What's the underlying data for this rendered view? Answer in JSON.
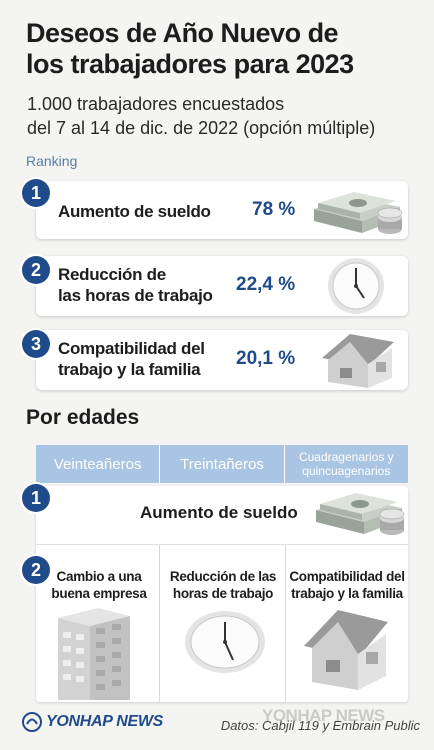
{
  "title_line1": "Deseos de Año Nuevo de",
  "title_line2": "los trabajadores para 2023",
  "subtitle_line1": "1.000 trabajadores encuestados",
  "subtitle_line2": "del 7 al 14 de dic. de 2022 (opción múltiple)",
  "ranking_label": "Ranking",
  "ranking": [
    {
      "rank": "1",
      "label_line1": "Aumento de sueldo",
      "label_line2": "",
      "pct": "78 %",
      "icon": "money-icon"
    },
    {
      "rank": "2",
      "label_line1": "Reducción de",
      "label_line2": "las horas de trabajo",
      "pct": "22,4 %",
      "icon": "clock-icon"
    },
    {
      "rank": "3",
      "label_line1": "Compatibilidad del",
      "label_line2": "trabajo y la familia",
      "pct": "20,1 %",
      "icon": "house-icon"
    }
  ],
  "by_age": {
    "title": "Por edades",
    "groups": [
      "Veinteañeros",
      "Treintañeros",
      "Cuadragenarios y",
      "quincuagenarios"
    ],
    "rank1_label": "Aumento de sueldo",
    "rank1_badge": "1",
    "rank2_badge": "2",
    "rank2": [
      {
        "line1": "Cambio a una",
        "line2": "buena empresa",
        "icon": "building-icon"
      },
      {
        "line1": "Reducción de las",
        "line2": "horas de trabajo",
        "icon": "clock-icon"
      },
      {
        "line1": "Compatibilidad del",
        "line2": "trabajo y la familia",
        "icon": "house-icon"
      }
    ]
  },
  "footer": {
    "logo": "YONHAP NEWS",
    "source": "Datos: Cabjil 119 y Embrain Public",
    "watermark": "YONHAP NEWS"
  },
  "colors": {
    "accent": "#1f4b8a",
    "header_blue": "#aac5e3",
    "label_blue": "#5a7ea6"
  },
  "chart_data": {
    "type": "bar",
    "title": "Deseos de Año Nuevo de los trabajadores para 2023",
    "categories": [
      "Aumento de sueldo",
      "Reducción de las horas de trabajo",
      "Compatibilidad del trabajo y la familia"
    ],
    "values": [
      78,
      22.4,
      20.1
    ],
    "unit": "%"
  }
}
